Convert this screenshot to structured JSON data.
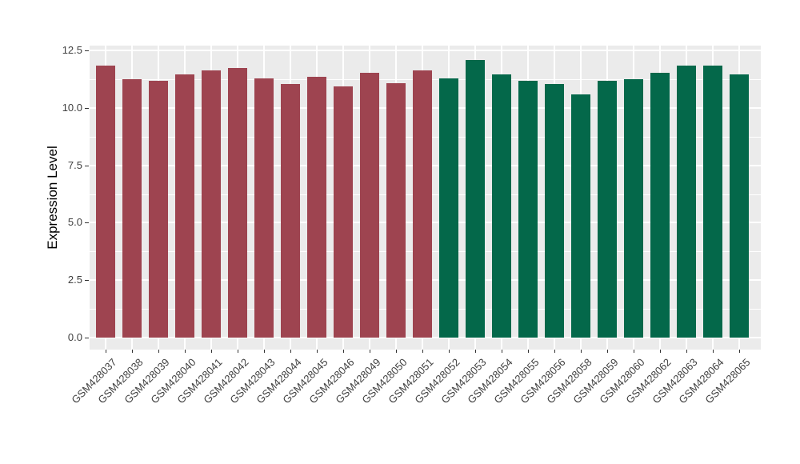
{
  "chart_data": {
    "type": "bar",
    "title": "",
    "ylabel": "Expression Level",
    "xlabel": "",
    "ylim": [
      0,
      12.72
    ],
    "yticks": [
      0,
      2.5,
      5,
      7.5,
      10,
      12.5
    ],
    "ytick_labels": [
      "0.0",
      "2.5",
      "5.0",
      "7.5",
      "10.0",
      "12.5"
    ],
    "yticks_minor": [
      1.25,
      3.75,
      6.25,
      8.75,
      11.25
    ],
    "grid": true,
    "legend_position": "none",
    "panel_bg": "#ebebeb",
    "grid_color": "#ffffff",
    "categories": [
      "GSM428037",
      "GSM428038",
      "GSM428039",
      "GSM428040",
      "GSM428041",
      "GSM428042",
      "GSM428043",
      "GSM428044",
      "GSM428045",
      "GSM428046",
      "GSM428049",
      "GSM428050",
      "GSM428051",
      "GSM428052",
      "GSM428053",
      "GSM428054",
      "GSM428055",
      "GSM428056",
      "GSM428058",
      "GSM428059",
      "GSM428060",
      "GSM428062",
      "GSM428063",
      "GSM428064",
      "GSM428065"
    ],
    "values": [
      11.85,
      11.25,
      11.2,
      11.45,
      11.65,
      11.75,
      11.3,
      11.05,
      11.35,
      10.95,
      11.55,
      11.1,
      11.65,
      11.3,
      12.1,
      11.45,
      11.2,
      11.05,
      10.6,
      11.2,
      11.25,
      11.55,
      11.85,
      11.85,
      11.45
    ],
    "groups": [
      "group1",
      "group1",
      "group1",
      "group1",
      "group1",
      "group1",
      "group1",
      "group1",
      "group1",
      "group1",
      "group1",
      "group1",
      "group1",
      "group2",
      "group2",
      "group2",
      "group2",
      "group2",
      "group2",
      "group2",
      "group2",
      "group2",
      "group2",
      "group2",
      "group2"
    ],
    "group_colors": {
      "group1": "#9e4450",
      "group2": "#04684a"
    }
  }
}
